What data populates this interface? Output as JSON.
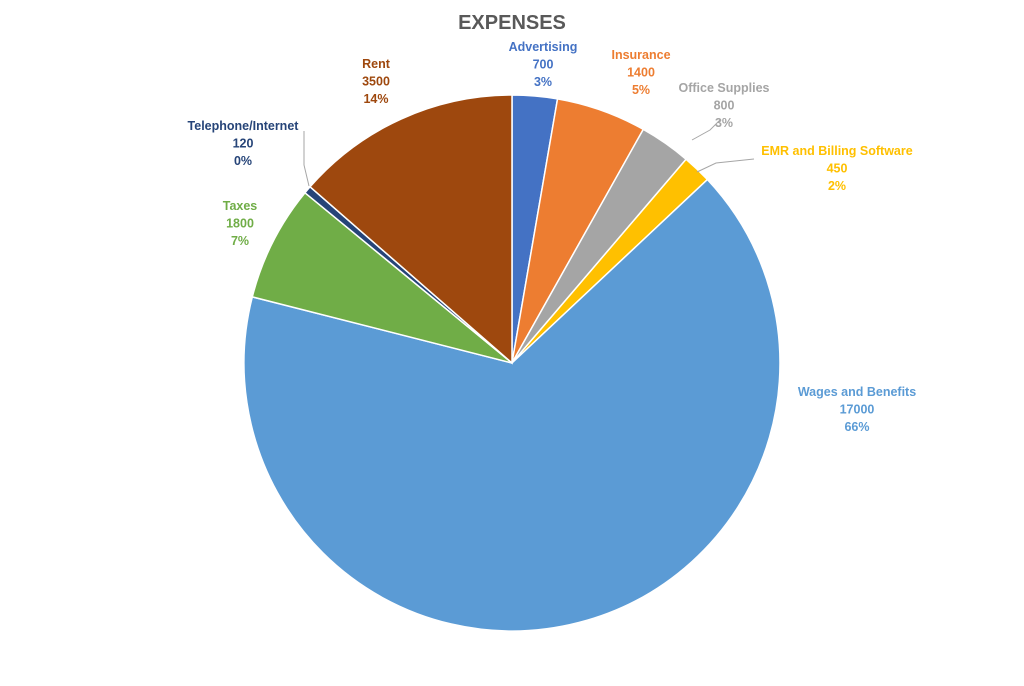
{
  "chart_data": {
    "type": "pie",
    "title": "EXPENSES",
    "slices": [
      {
        "label": "Advertising",
        "value": 700,
        "percent": "3%",
        "color": "#4472C4"
      },
      {
        "label": "Insurance",
        "value": 1400,
        "percent": "5%",
        "color": "#ED7D31"
      },
      {
        "label": "Office Supplies",
        "value": 800,
        "percent": "3%",
        "color": "#A5A5A5"
      },
      {
        "label": "EMR and Billing Software",
        "value": 450,
        "percent": "2%",
        "color": "#FFC000"
      },
      {
        "label": "Wages and Benefits",
        "value": 17000,
        "percent": "66%",
        "color": "#5B9BD5"
      },
      {
        "label": "Taxes",
        "value": 1800,
        "percent": "7%",
        "color": "#70AD47"
      },
      {
        "label": "Telephone/Internet",
        "value": 120,
        "percent": "0%",
        "color": "#264478"
      },
      {
        "label": "Rent",
        "value": 3500,
        "percent": "14%",
        "color": "#9E480E"
      }
    ],
    "legend": "none",
    "data_labels": "outside"
  }
}
